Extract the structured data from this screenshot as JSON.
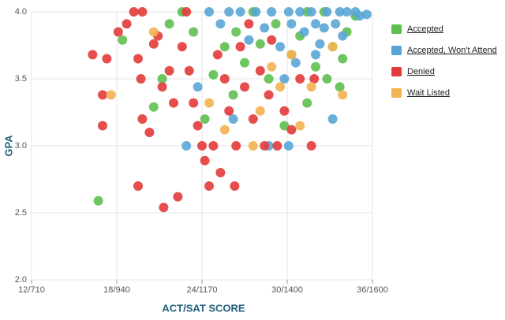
{
  "chart_data": {
    "type": "scatter",
    "x_label": "ACT/SAT SCORE",
    "y_label": "GPA",
    "xlim": [
      12,
      36
    ],
    "ylim": [
      2,
      4
    ],
    "xticks": [
      {
        "value": 12,
        "label": "12/710"
      },
      {
        "value": 18,
        "label": "18/940"
      },
      {
        "value": 24,
        "label": "24/1170"
      },
      {
        "value": 30,
        "label": "30/1400"
      },
      {
        "value": 36,
        "label": "36/1600"
      }
    ],
    "yticks": [
      {
        "value": 2,
        "label": "2.0"
      },
      2.5,
      {
        "value": 3,
        "label": "3.0"
      },
      3.5,
      {
        "value": 4,
        "label": "4.0"
      }
    ],
    "grid": true,
    "legend": "right",
    "series": [
      {
        "name": "Accepted",
        "color": "#5fbf4f",
        "x": [
          16.7,
          18.4,
          20.6,
          21.2,
          21.7,
          22.6,
          23.4,
          24.2,
          24.8,
          25.6,
          26.2,
          26.4,
          27,
          27.6,
          28.1,
          28.7,
          29.2,
          29.8,
          30.3,
          30.9,
          31.4,
          32,
          32.6,
          33.2,
          33.7,
          34.2,
          34.8,
          31.4,
          32.8,
          33.9
        ],
        "y": [
          2.59,
          3.79,
          3.29,
          3.5,
          3.91,
          4,
          3.85,
          3.2,
          3.53,
          3.74,
          3.38,
          3.85,
          3.62,
          4,
          3.76,
          3.5,
          3.91,
          3.15,
          3.68,
          3.82,
          3.32,
          3.59,
          4,
          3.74,
          3.44,
          3.85,
          3.97,
          4,
          3.5,
          3.65
        ]
      },
      {
        "name": "Accepted, Won't Attend",
        "color": "#5aa5d6",
        "x": [
          22.9,
          23.7,
          24.5,
          25.3,
          25.9,
          26.2,
          26.7,
          27.3,
          27.8,
          28.4,
          28.7,
          28.9,
          29.5,
          30.1,
          30.1,
          30.3,
          30.9,
          31.2,
          31.7,
          32,
          32.3,
          32.6,
          32.8,
          33.2,
          33.4,
          33.7,
          33.9,
          34.2,
          34.8,
          35.1,
          35.6,
          30.6,
          32,
          29.8
        ],
        "y": [
          3,
          3.44,
          4,
          3.91,
          4,
          3.2,
          4,
          3.79,
          4,
          3.88,
          3,
          4,
          3.74,
          3,
          4,
          3.91,
          4,
          3.85,
          4,
          3.91,
          3.76,
          3.88,
          4,
          3.2,
          3.91,
          4,
          3.82,
          4,
          4,
          3.97,
          3.98,
          3.62,
          3.68,
          3.5
        ]
      },
      {
        "name": "Denied",
        "color": "#e33b3b",
        "x": [
          16.3,
          17.3,
          17,
          17,
          18.1,
          18.7,
          19.2,
          19.8,
          19.5,
          19.7,
          19.8,
          19.5,
          20.3,
          20.6,
          20.9,
          21.2,
          21.3,
          21.7,
          22,
          22.3,
          22.6,
          22.9,
          23.1,
          23.4,
          23.7,
          24,
          24.2,
          24.5,
          24.8,
          25.1,
          25.3,
          25.6,
          25.9,
          26.3,
          26.4,
          26.7,
          27,
          27.3,
          27.6,
          28.1,
          28.4,
          28.7,
          28.9,
          29.3,
          29.8,
          30.3,
          30.9,
          31.7,
          31.9
        ],
        "y": [
          3.68,
          3.65,
          3.38,
          3.15,
          3.85,
          3.91,
          4,
          4,
          3.65,
          3.5,
          3.2,
          2.7,
          3.1,
          3.76,
          3.82,
          3.44,
          2.54,
          3.56,
          3.32,
          2.62,
          3.74,
          4,
          3.56,
          3.32,
          3.15,
          3,
          2.89,
          2.7,
          3,
          3.68,
          2.8,
          3.5,
          3.26,
          2.7,
          3,
          3.74,
          3.44,
          3.91,
          3.2,
          3.56,
          3,
          3.38,
          3.79,
          3,
          3.26,
          3.12,
          3.5,
          3,
          3.5
        ]
      },
      {
        "name": "Wait Listed",
        "color": "#f4b350",
        "x": [
          17.6,
          20.6,
          24.5,
          25.6,
          27.6,
          28.1,
          28.9,
          29.5,
          30.3,
          30.9,
          31.7,
          33.2,
          33.9
        ],
        "y": [
          3.38,
          3.85,
          3.32,
          3.12,
          3,
          3.26,
          3.59,
          3.44,
          3.68,
          3.15,
          3.44,
          3.74,
          3.38
        ]
      }
    ]
  }
}
